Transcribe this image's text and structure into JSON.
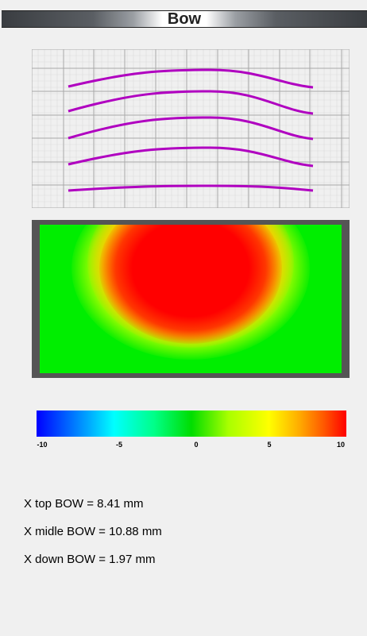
{
  "window": {
    "title": "Bow"
  },
  "colorbar": {
    "ticks": [
      "-10",
      "-5",
      "0",
      "5",
      "10"
    ],
    "min": -10,
    "max": 10
  },
  "results": [
    "X top BOW = 8.41 mm",
    "X midle BOW = 10.88 mm",
    "X down BOW = 1.97 mm"
  ],
  "colors": {
    "profile_line": "#b000c0",
    "grid": "#c8c8c8",
    "frame": "#555555"
  }
}
